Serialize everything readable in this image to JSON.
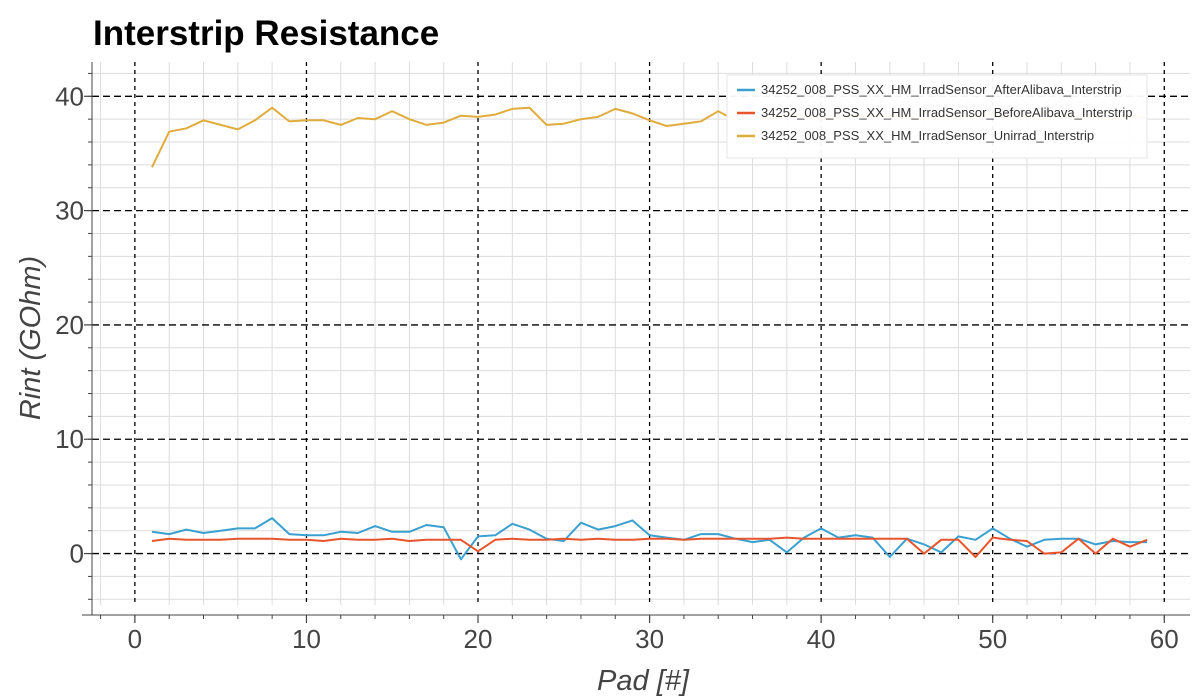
{
  "chart_data": {
    "type": "line",
    "title": "Interstrip Resistance",
    "xlabel": "Pad [#]",
    "ylabel": "Rint (GOhm)",
    "xlim": [
      -2.5,
      61.5
    ],
    "ylim": [
      -4.5,
      43
    ],
    "xticks": [
      0,
      10,
      20,
      30,
      40,
      50,
      60
    ],
    "yticks": [
      0,
      10,
      20,
      30,
      40
    ],
    "grid": true,
    "legend_position": "top-right",
    "x": [
      1,
      2,
      3,
      4,
      5,
      6,
      7,
      8,
      9,
      10,
      11,
      12,
      13,
      14,
      15,
      16,
      17,
      18,
      19,
      20,
      21,
      22,
      23,
      24,
      25,
      26,
      27,
      28,
      29,
      30,
      31,
      32,
      33,
      34,
      35,
      36,
      37,
      38,
      39,
      40,
      41,
      42,
      43,
      44,
      45,
      46,
      47,
      48,
      49,
      50,
      51,
      52,
      53,
      54,
      55,
      56,
      57,
      58,
      59
    ],
    "series": [
      {
        "name": "34252_008_PSS_XX_HM_IrradSensor_AfterAlibava_Interstrip",
        "color": "#3aa0d0",
        "values": [
          1.9,
          1.7,
          2.1,
          1.8,
          2.0,
          2.2,
          2.2,
          3.1,
          1.7,
          1.6,
          1.6,
          1.9,
          1.8,
          2.4,
          1.9,
          1.9,
          2.5,
          2.3,
          -0.5,
          1.5,
          1.6,
          2.6,
          2.1,
          1.3,
          1.1,
          2.7,
          2.1,
          2.4,
          2.9,
          1.6,
          1.4,
          1.2,
          1.7,
          1.7,
          1.3,
          1.0,
          1.2,
          0.1,
          1.4,
          2.2,
          1.4,
          1.6,
          1.4,
          -0.3,
          1.3,
          0.8,
          0.1,
          1.5,
          1.2,
          2.2,
          1.3,
          0.6,
          1.2,
          1.3,
          1.3,
          0.8,
          1.1,
          1.0,
          1.0
        ]
      },
      {
        "name": "34252_008_PSS_XX_HM_IrradSensor_BeforeAlibava_Interstrip",
        "color": "#e8552c",
        "values": [
          1.1,
          1.3,
          1.2,
          1.2,
          1.2,
          1.3,
          1.3,
          1.3,
          1.2,
          1.2,
          1.1,
          1.3,
          1.2,
          1.2,
          1.3,
          1.1,
          1.2,
          1.2,
          1.2,
          0.2,
          1.2,
          1.3,
          1.2,
          1.2,
          1.3,
          1.2,
          1.3,
          1.2,
          1.2,
          1.3,
          1.3,
          1.2,
          1.3,
          1.3,
          1.3,
          1.3,
          1.3,
          1.4,
          1.3,
          1.3,
          1.3,
          1.3,
          1.3,
          1.3,
          1.3,
          0.0,
          1.2,
          1.2,
          -0.3,
          1.4,
          1.2,
          1.1,
          0.0,
          0.1,
          1.3,
          0.0,
          1.3,
          0.6,
          1.2
        ]
      },
      {
        "name": "34252_008_PSS_XX_HM_IrradSensor_Unirrad_Interstrip",
        "color": "#e0ac3c",
        "values": [
          33.8,
          36.9,
          37.2,
          37.9,
          37.5,
          37.1,
          37.9,
          39.0,
          37.8,
          37.9,
          37.9,
          37.5,
          38.1,
          38.0,
          38.7,
          38.0,
          37.5,
          37.7,
          38.3,
          38.2,
          38.4,
          38.9,
          39.0,
          37.5,
          37.6,
          38.0,
          38.2,
          38.9,
          38.5,
          37.9,
          37.4,
          37.6,
          37.8,
          38.7,
          37.9,
          38.3,
          38.0,
          38.4,
          38.3,
          38.1,
          38.1,
          38.3,
          38.2,
          38.3,
          38.2,
          38.0,
          38.2,
          38.1,
          38.3,
          38.4,
          38.1,
          38.2,
          38.0,
          38.3,
          38.1,
          38.2,
          38.0,
          38.3,
          38.1
        ]
      }
    ]
  }
}
